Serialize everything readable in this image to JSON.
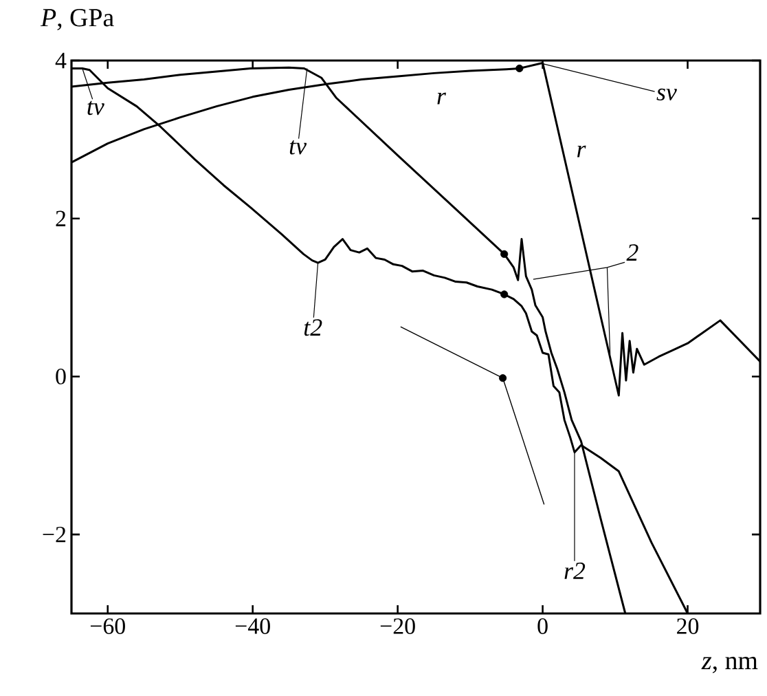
{
  "chart_data": {
    "type": "line",
    "xlabel": "*z*, nm",
    "ylabel": "*P*, GPa",
    "xlim": [
      -65,
      30
    ],
    "ylim": [
      -3,
      4
    ],
    "xticks": [
      {
        "value": -60,
        "label": "−60"
      },
      {
        "value": -40,
        "label": "−40"
      },
      {
        "value": -20,
        "label": "−20"
      },
      0,
      20
    ],
    "yticks": [
      {
        "value": -2,
        "label": "−2"
      },
      0,
      2,
      4
    ],
    "grid": false,
    "series": [
      {
        "color": "#000000",
        "x": [
          -65,
          -63.5,
          -62.5,
          -60,
          -56,
          -52.7,
          -48,
          -44,
          -40.3,
          -36,
          -33,
          -31.8,
          -31,
          -30,
          -28.8,
          -27.6,
          -26.5,
          -25.3,
          -24.2,
          -23,
          -21.8,
          -20.6,
          -19.4,
          -18,
          -16.5,
          -15,
          -13.5,
          -12,
          -10.5,
          -9,
          -7,
          -5.3,
          -4,
          -2.9,
          -2.3,
          -1.5,
          -0.8,
          0,
          0.8,
          1.5,
          2.3,
          3,
          3.8,
          4.4,
          5.3,
          8,
          10.5,
          15,
          20
        ],
        "values": [
          3.9,
          3.9,
          3.88,
          3.65,
          3.42,
          3.16,
          2.75,
          2.42,
          2.14,
          1.8,
          1.55,
          1.47,
          1.44,
          1.48,
          1.64,
          1.74,
          1.6,
          1.57,
          1.62,
          1.5,
          1.48,
          1.42,
          1.4,
          1.33,
          1.34,
          1.28,
          1.25,
          1.2,
          1.19,
          1.14,
          1.1,
          1.04,
          0.98,
          0.89,
          0.8,
          0.57,
          0.52,
          0.3,
          0.28,
          -0.12,
          -0.2,
          -0.55,
          -0.77,
          -0.96,
          -0.87,
          -1.03,
          -1.2,
          -2.1,
          -3
        ]
      },
      {
        "color": "#000000",
        "x": [
          -65,
          -60,
          -55,
          -50,
          -45,
          -40.3,
          -35,
          -32.9,
          -30.5,
          -28.5,
          -20,
          -12,
          -5.3,
          -4,
          -3.4,
          -2.9,
          -2.3,
          -1.5,
          -1,
          0,
          0.4,
          1.2,
          2,
          3,
          4,
          5.3,
          8,
          11.4
        ],
        "values": [
          3.67,
          3.72,
          3.76,
          3.82,
          3.86,
          3.9,
          3.91,
          3.9,
          3.78,
          3.53,
          2.8,
          2.12,
          1.55,
          1.38,
          1.22,
          1.74,
          1.27,
          1.1,
          0.9,
          0.75,
          0.57,
          0.3,
          0.1,
          -0.2,
          -0.55,
          -0.82,
          -1.8,
          -3
        ]
      },
      {
        "color": "#000000",
        "x": [
          -65,
          -60,
          -55,
          -50,
          -45,
          -40,
          -35,
          -30,
          -25,
          -20,
          -15,
          -10,
          -5,
          -3.2,
          0,
          10.5,
          11,
          11.5,
          12,
          12.5,
          13,
          14,
          16,
          20,
          24.5,
          30
        ],
        "values": [
          2.71,
          2.95,
          3.13,
          3.28,
          3.42,
          3.54,
          3.63,
          3.7,
          3.76,
          3.8,
          3.84,
          3.87,
          3.89,
          3.9,
          3.97,
          -0.24,
          0.55,
          -0.05,
          0.45,
          0.05,
          0.35,
          0.15,
          0.25,
          0.42,
          0.71,
          0.19
        ]
      },
      {
        "color": "#000000",
        "x": [
          -19.6,
          -5.5,
          0.2
        ],
        "values": [
          0.63,
          -0.02,
          -1.62
        ]
      },
      {
        "type": "scatter",
        "marker": "circle",
        "color": "#000000",
        "x": [
          -3.2,
          -5.3,
          -5.3,
          -5.5
        ],
        "values": [
          3.9,
          1.55,
          1.04,
          -0.02
        ]
      }
    ],
    "annotations": [
      {
        "text": "tv",
        "x": -63.5,
        "y": 3.9
      },
      {
        "text": "tv",
        "x": -32.5,
        "y": 3.9
      },
      {
        "text": "r",
        "x": -14,
        "y": 3.84
      },
      {
        "text": "r",
        "x": 2.9,
        "y": 2.85
      },
      {
        "text": "sv",
        "x": 0,
        "y": 3.96
      },
      {
        "text": "t2",
        "x": -31,
        "y": 1.44
      },
      {
        "text": "2",
        "x": -1.3,
        "y": 1.23
      },
      {
        "text": "r2",
        "x": 4.4,
        "y": -0.96
      }
    ]
  }
}
